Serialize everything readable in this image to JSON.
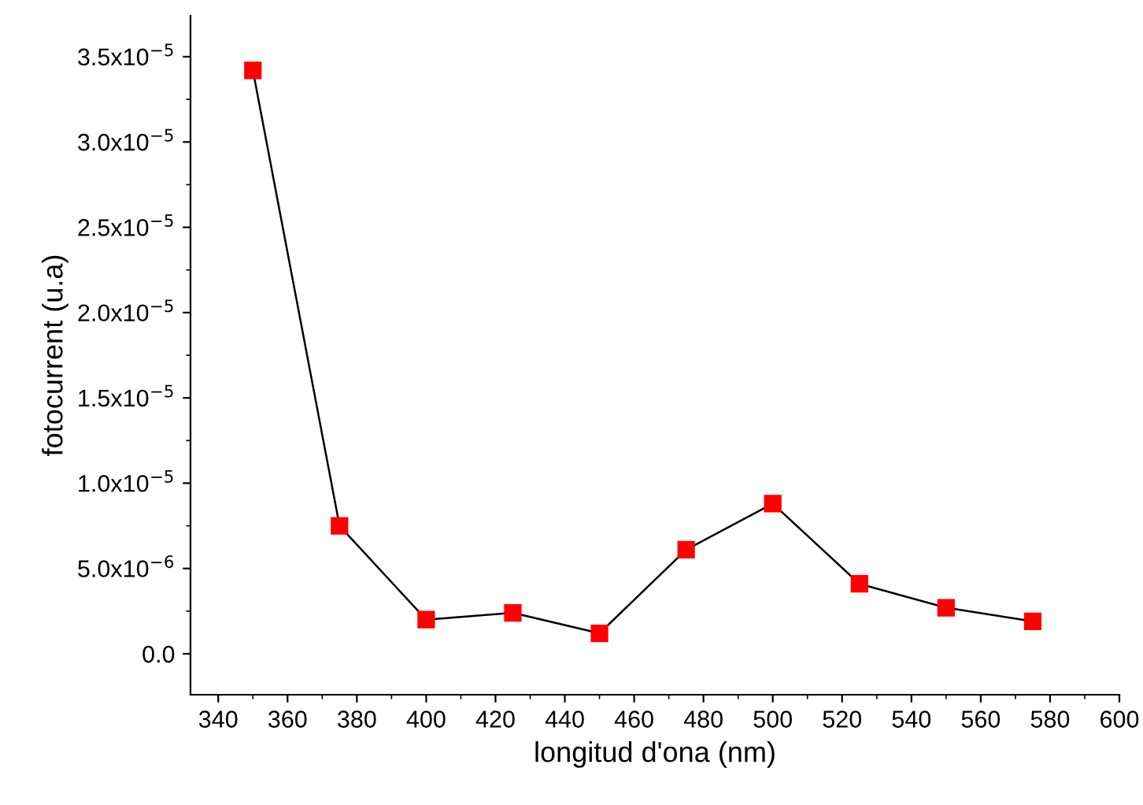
{
  "chart_data": {
    "type": "line",
    "xlabel": "longitud d'ona (nm)",
    "ylabel": "fotocurrent (u.a)",
    "x": [
      350,
      375,
      400,
      425,
      450,
      475,
      500,
      525,
      550,
      575
    ],
    "series": [
      {
        "color": "#ff0000",
        "values": [
          3.42e-05,
          7.5e-06,
          2e-06,
          2.4e-06,
          1.2e-06,
          6.1e-06,
          8.8e-06,
          4.1e-06,
          2.7e-06,
          1.9e-06
        ]
      }
    ],
    "marker": "square",
    "line_style": "solid",
    "grid": false,
    "legend": false,
    "xlim": [
      332,
      600
    ],
    "xticks": [
      340,
      360,
      380,
      400,
      420,
      440,
      460,
      480,
      500,
      520,
      540,
      560,
      580,
      600
    ],
    "ylim": [
      -2.4e-06,
      3.74e-05
    ],
    "yticks": [
      {
        "value": 0,
        "label": "0.0"
      },
      {
        "value": 5e-06,
        "label": "5.0x10$^{−6}$"
      },
      {
        "value": 1e-05,
        "label": "1.0x10$^{−5}$"
      },
      {
        "value": 1.5e-05,
        "label": "1.5x10$^{−5}$"
      },
      {
        "value": 2e-05,
        "label": "2.0x10$^{−5}$"
      },
      {
        "value": 2.5e-05,
        "label": "2.5x10$^{−5}$"
      },
      {
        "value": 3e-05,
        "label": "3.0x10$^{−5}$"
      },
      {
        "value": 3.5e-05,
        "label": "3.5x10$^{−5}$"
      }
    ]
  }
}
